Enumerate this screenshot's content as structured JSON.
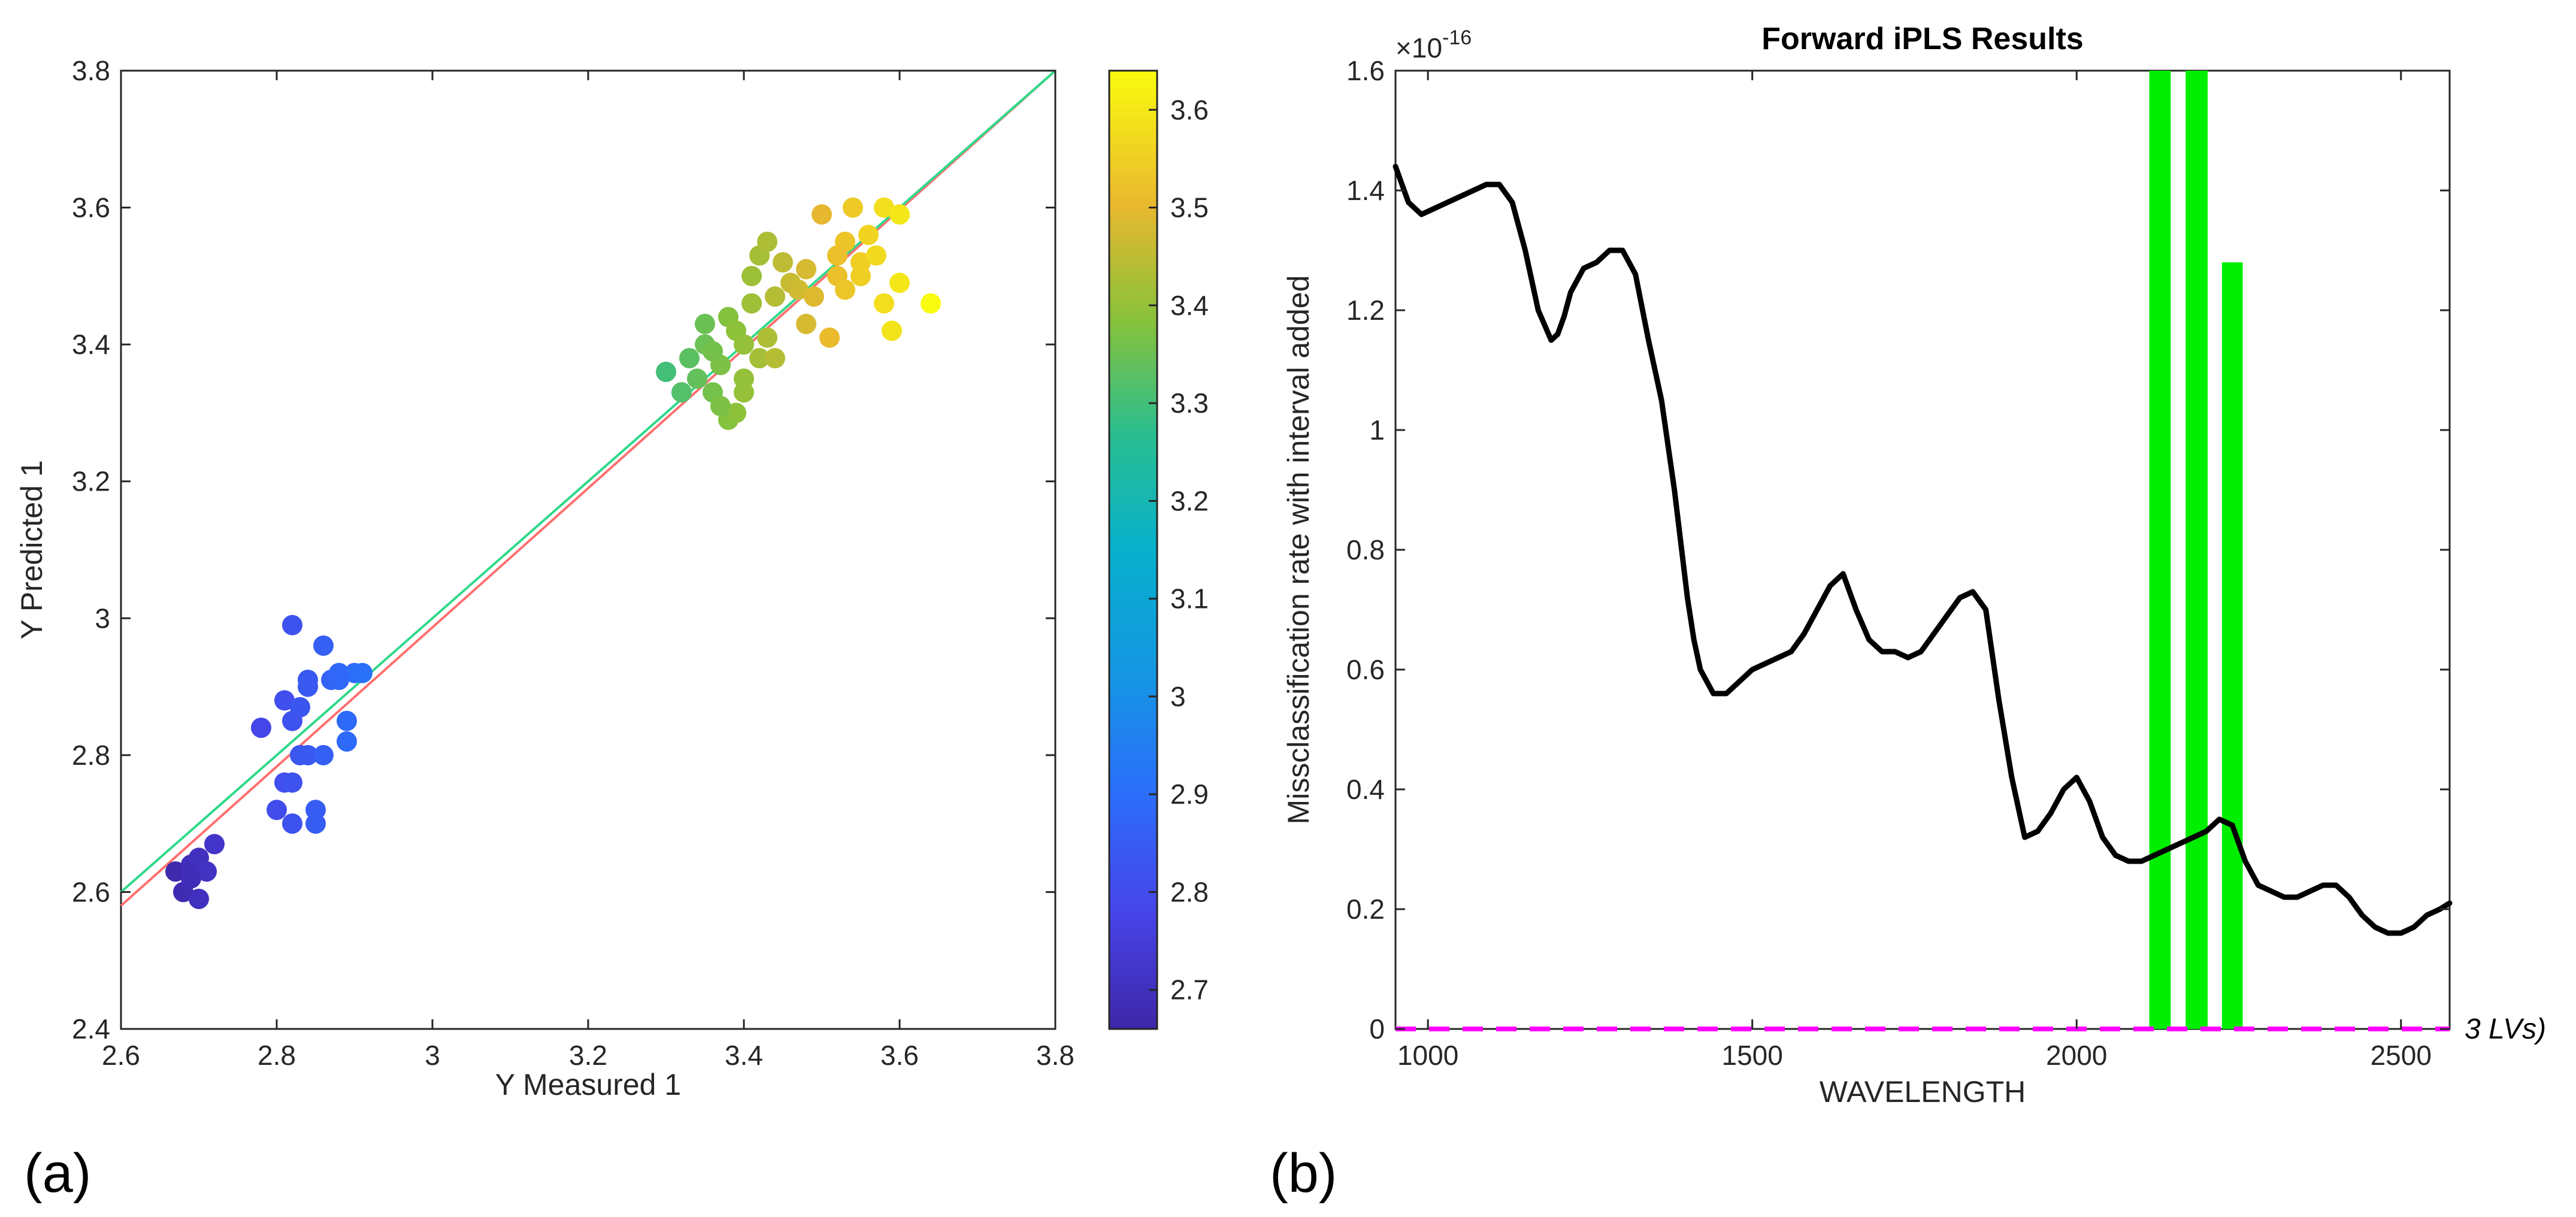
{
  "panel_labels": {
    "a": "(a)",
    "b": "(b)"
  },
  "chart_data": [
    {
      "type": "scatter",
      "title": "",
      "xlabel": "Y Measured 1",
      "ylabel": "Y Predicted 1",
      "xlim": [
        2.6,
        3.8
      ],
      "ylim": [
        2.4,
        3.8
      ],
      "xticks": [
        2.6,
        2.8,
        3.0,
        3.2,
        3.4,
        3.6,
        3.8
      ],
      "xtick_labels": [
        "2.6",
        "2.8",
        "3",
        "3.2",
        "3.4",
        "3.6",
        "3.8"
      ],
      "yticks": [
        2.4,
        2.6,
        2.8,
        3.0,
        3.2,
        3.4,
        3.6,
        3.8
      ],
      "ytick_labels": [
        "2.4",
        "2.6",
        "2.8",
        "3",
        "3.2",
        "3.4",
        "3.6",
        "3.8"
      ],
      "colorbar": {
        "colormap": "parula",
        "range": [
          2.66,
          3.64
        ],
        "ticks": [
          2.7,
          2.8,
          2.9,
          3.0,
          3.1,
          3.2,
          3.3,
          3.4,
          3.5,
          3.6
        ],
        "tick_labels": [
          "2.7",
          "2.8",
          "2.9",
          "3",
          "3.1",
          "3.2",
          "3.3",
          "3.4",
          "3.5",
          "3.6"
        ]
      },
      "lines": [
        {
          "color": "#ff6f6f",
          "from": [
            2.6,
            2.58
          ],
          "to": [
            3.8,
            3.8
          ]
        },
        {
          "color": "#2fd88a",
          "from": [
            2.6,
            2.6
          ],
          "to": [
            3.8,
            3.8
          ]
        }
      ],
      "points": [
        [
          2.67,
          2.63
        ],
        [
          2.68,
          2.6
        ],
        [
          2.69,
          2.64
        ],
        [
          2.7,
          2.65
        ],
        [
          2.71,
          2.63
        ],
        [
          2.7,
          2.59
        ],
        [
          2.72,
          2.67
        ],
        [
          2.69,
          2.62
        ],
        [
          2.78,
          2.84
        ],
        [
          2.8,
          2.72
        ],
        [
          2.81,
          2.76
        ],
        [
          2.81,
          2.88
        ],
        [
          2.82,
          2.99
        ],
        [
          2.82,
          2.85
        ],
        [
          2.83,
          2.8
        ],
        [
          2.83,
          2.87
        ],
        [
          2.84,
          2.9
        ],
        [
          2.84,
          2.8
        ],
        [
          2.85,
          2.72
        ],
        [
          2.85,
          2.7
        ],
        [
          2.86,
          2.96
        ],
        [
          2.87,
          2.91
        ],
        [
          2.88,
          2.92
        ],
        [
          2.89,
          2.85
        ],
        [
          2.89,
          2.82
        ],
        [
          2.9,
          2.92
        ],
        [
          2.91,
          2.92
        ],
        [
          2.82,
          2.7
        ],
        [
          2.82,
          2.76
        ],
        [
          2.84,
          2.91
        ],
        [
          2.86,
          2.8
        ],
        [
          2.88,
          2.91
        ],
        [
          3.3,
          3.36
        ],
        [
          3.32,
          3.33
        ],
        [
          3.33,
          3.38
        ],
        [
          3.34,
          3.35
        ],
        [
          3.35,
          3.4
        ],
        [
          3.35,
          3.43
        ],
        [
          3.36,
          3.33
        ],
        [
          3.37,
          3.37
        ],
        [
          3.38,
          3.29
        ],
        [
          3.38,
          3.44
        ],
        [
          3.39,
          3.42
        ],
        [
          3.39,
          3.3
        ],
        [
          3.4,
          3.35
        ],
        [
          3.4,
          3.4
        ],
        [
          3.41,
          3.46
        ],
        [
          3.41,
          3.5
        ],
        [
          3.42,
          3.38
        ],
        [
          3.42,
          3.53
        ],
        [
          3.43,
          3.41
        ],
        [
          3.43,
          3.55
        ],
        [
          3.44,
          3.47
        ],
        [
          3.45,
          3.52
        ],
        [
          3.46,
          3.49
        ],
        [
          3.47,
          3.48
        ],
        [
          3.48,
          3.43
        ],
        [
          3.49,
          3.47
        ],
        [
          3.5,
          3.59
        ],
        [
          3.51,
          3.41
        ],
        [
          3.52,
          3.5
        ],
        [
          3.53,
          3.55
        ],
        [
          3.53,
          3.48
        ],
        [
          3.54,
          3.6
        ],
        [
          3.55,
          3.5
        ],
        [
          3.55,
          3.52
        ],
        [
          3.56,
          3.56
        ],
        [
          3.57,
          3.53
        ],
        [
          3.58,
          3.6
        ],
        [
          3.58,
          3.46
        ],
        [
          3.59,
          3.42
        ],
        [
          3.6,
          3.49
        ],
        [
          3.6,
          3.59
        ],
        [
          3.64,
          3.46
        ],
        [
          3.37,
          3.31
        ],
        [
          3.4,
          3.33
        ],
        [
          3.44,
          3.38
        ],
        [
          3.48,
          3.51
        ],
        [
          3.36,
          3.39
        ],
        [
          3.52,
          3.53
        ]
      ]
    },
    {
      "type": "line",
      "title": "Forward iPLS Results",
      "xlabel": "WAVELENGTH",
      "ylabel": "Missclassification rate with interval added",
      "xlim": [
        950,
        2575
      ],
      "ylim": [
        0,
        1.6
      ],
      "y_multiplier": {
        "base": "×10",
        "exponent": "-16"
      },
      "xticks": [
        1000,
        1500,
        2000,
        2500
      ],
      "xtick_labels": [
        "1000",
        "1500",
        "2000",
        "2500"
      ],
      "yticks": [
        0,
        0.2,
        0.4,
        0.6,
        0.8,
        1.0,
        1.2,
        1.4,
        1.6
      ],
      "ytick_labels": [
        "0",
        "0.2",
        "0.4",
        "0.6",
        "0.8",
        "1",
        "1.2",
        "1.4",
        "1.6"
      ],
      "series": [
        {
          "color": "#000000",
          "x": [
            950,
            970,
            990,
            1010,
            1030,
            1050,
            1070,
            1090,
            1110,
            1130,
            1150,
            1170,
            1190,
            1200,
            1210,
            1220,
            1240,
            1260,
            1280,
            1300,
            1320,
            1340,
            1360,
            1380,
            1400,
            1410,
            1420,
            1440,
            1460,
            1480,
            1500,
            1520,
            1540,
            1560,
            1580,
            1600,
            1620,
            1640,
            1660,
            1680,
            1700,
            1720,
            1740,
            1760,
            1780,
            1800,
            1820,
            1840,
            1860,
            1880,
            1900,
            1920,
            1940,
            1960,
            1980,
            2000,
            2020,
            2040,
            2060,
            2080,
            2100,
            2120,
            2140,
            2160,
            2180,
            2200,
            2220,
            2240,
            2260,
            2280,
            2300,
            2320,
            2340,
            2360,
            2380,
            2400,
            2420,
            2440,
            2460,
            2480,
            2500,
            2520,
            2540,
            2560,
            2575
          ],
          "y": [
            1.44,
            1.38,
            1.36,
            1.37,
            1.38,
            1.39,
            1.4,
            1.41,
            1.41,
            1.38,
            1.3,
            1.2,
            1.15,
            1.16,
            1.19,
            1.23,
            1.27,
            1.28,
            1.3,
            1.3,
            1.26,
            1.15,
            1.05,
            0.9,
            0.72,
            0.65,
            0.6,
            0.56,
            0.56,
            0.58,
            0.6,
            0.61,
            0.62,
            0.63,
            0.66,
            0.7,
            0.74,
            0.76,
            0.7,
            0.65,
            0.63,
            0.63,
            0.62,
            0.63,
            0.66,
            0.69,
            0.72,
            0.73,
            0.7,
            0.55,
            0.42,
            0.32,
            0.33,
            0.36,
            0.4,
            0.42,
            0.38,
            0.32,
            0.29,
            0.28,
            0.28,
            0.29,
            0.3,
            0.31,
            0.32,
            0.33,
            0.35,
            0.34,
            0.28,
            0.24,
            0.23,
            0.22,
            0.22,
            0.23,
            0.24,
            0.24,
            0.22,
            0.19,
            0.17,
            0.16,
            0.16,
            0.17,
            0.19,
            0.2,
            0.21
          ]
        },
        {
          "color": "#ff00ff",
          "dashed": true,
          "x": [
            950,
            2575
          ],
          "y": [
            0,
            0
          ]
        }
      ],
      "bars": [
        {
          "x_start": 2112,
          "x_end": 2145,
          "value": 1.6
        },
        {
          "x_start": 2168,
          "x_end": 2202,
          "value": 1.6
        },
        {
          "x_start": 2224,
          "x_end": 2256,
          "value": 1.28
        }
      ],
      "bar_color": "#00ee00",
      "annotation": "3 LVs)"
    }
  ]
}
